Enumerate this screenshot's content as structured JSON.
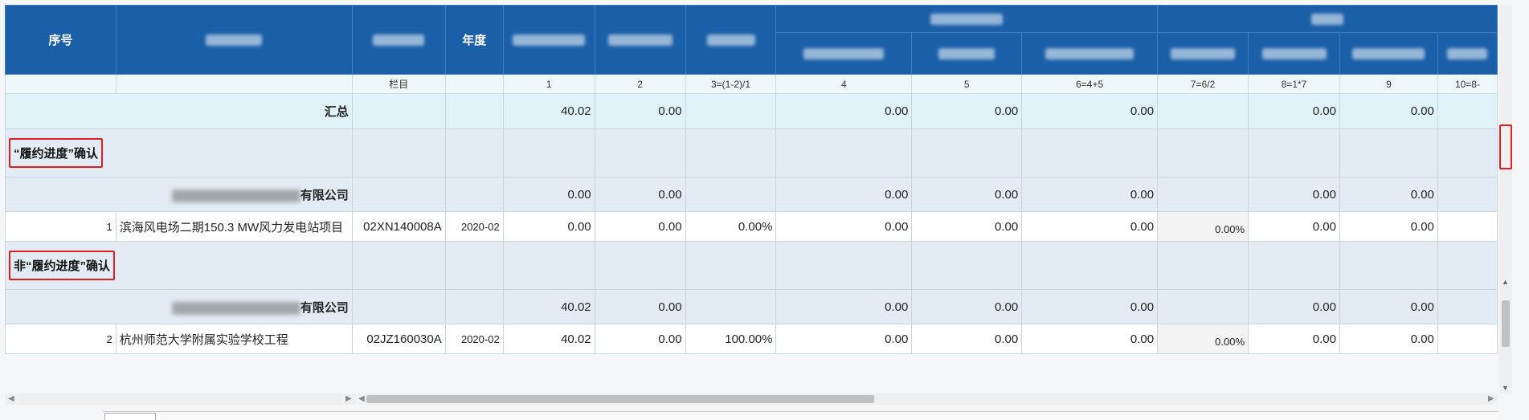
{
  "header": {
    "seq": "序号",
    "year": "年度",
    "col_no": "栏目"
  },
  "col_numbers": [
    "1",
    "2",
    "3=(1-2)/1",
    "4",
    "5",
    "6=4+5",
    "7=6/2",
    "8=1*7",
    "9",
    "10=8-"
  ],
  "total": {
    "label": "汇总",
    "values": [
      "40.02",
      "0.00",
      "",
      "0.00",
      "0.00",
      "0.00",
      "",
      "0.00",
      "0.00",
      ""
    ]
  },
  "groups": [
    {
      "title": "“履约进度”确认",
      "company": {
        "suffix": "有限公司",
        "values": [
          "0.00",
          "0.00",
          "",
          "0.00",
          "0.00",
          "0.00",
          "",
          "0.00",
          "0.00",
          ""
        ]
      },
      "item": {
        "seq": "1",
        "name": "滨海风电场二期150.3 MW风力发电站项目",
        "code": "02XN140008A",
        "year": "2020-02",
        "values": [
          "0.00",
          "0.00",
          "0.00%",
          "0.00",
          "0.00",
          "0.00",
          "0.00%",
          "0.00",
          "0.00",
          ""
        ]
      }
    },
    {
      "title": "非“履约进度”确认",
      "company": {
        "suffix": "有限公司",
        "values": [
          "40.02",
          "0.00",
          "",
          "0.00",
          "0.00",
          "0.00",
          "",
          "0.00",
          "0.00",
          ""
        ]
      },
      "item": {
        "seq": "2",
        "name": "杭州师范大学附属实验学校工程",
        "code": "02JZ160030A",
        "year": "2020-02",
        "values": [
          "40.02",
          "0.00",
          "100.00%",
          "0.00",
          "0.00",
          "0.00",
          "0.00%",
          "0.00",
          "0.00",
          ""
        ]
      }
    }
  ],
  "colors": {
    "header_bg": "#1a5fa8",
    "total_bg": "#dff3f8",
    "group_bg": "#e3ecf5",
    "highlight_border": "#e02020"
  }
}
